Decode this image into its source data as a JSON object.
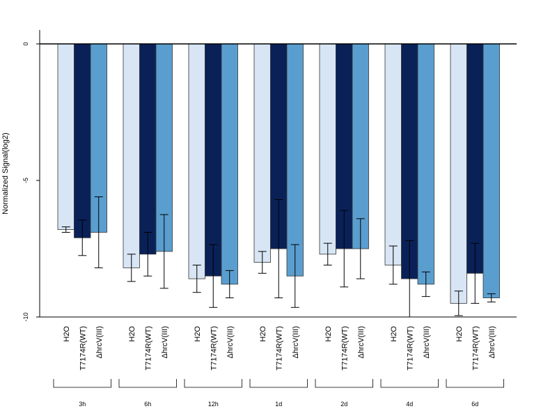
{
  "chart_data": {
    "type": "bar",
    "ylabel": "Normalized Signal(log2)",
    "ylim": [
      -10,
      0
    ],
    "yticks": [
      "0",
      "-5",
      "-10"
    ],
    "groups": [
      "3h",
      "6h",
      "12h",
      "1d",
      "2d",
      "4d",
      "6d"
    ],
    "categories": [
      "H2O",
      "T7174R(WT)",
      "ΔhrcV(III)"
    ],
    "colors": [
      "#d7e5f4",
      "#0a2158",
      "#5a9ecf"
    ],
    "values": [
      [
        -6.8,
        -7.1,
        -6.9
      ],
      [
        -8.2,
        -7.7,
        -7.6
      ],
      [
        -8.6,
        -8.5,
        -8.8
      ],
      [
        -8.0,
        -7.5,
        -8.5
      ],
      [
        -7.7,
        -7.5,
        -7.5
      ],
      [
        -8.1,
        -8.6,
        -8.8
      ],
      [
        -9.5,
        -8.4,
        -9.3
      ]
    ],
    "errors": [
      [
        0.1,
        0.65,
        1.3
      ],
      [
        0.5,
        0.8,
        1.35
      ],
      [
        0.5,
        1.15,
        0.5
      ],
      [
        0.4,
        1.8,
        1.15
      ],
      [
        0.4,
        1.4,
        1.1
      ],
      [
        0.7,
        1.4,
        0.45
      ],
      [
        0.45,
        1.1,
        0.15
      ]
    ]
  }
}
